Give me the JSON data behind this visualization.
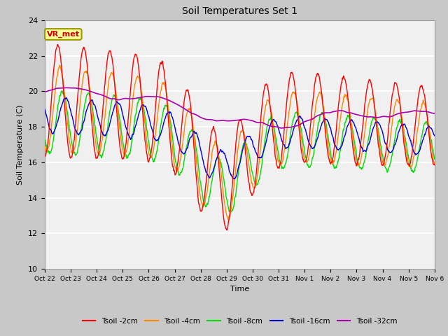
{
  "title": "Soil Temperatures Set 1",
  "xlabel": "Time",
  "ylabel": "Soil Temperature (C)",
  "ylim": [
    10,
    24
  ],
  "yticks": [
    10,
    12,
    14,
    16,
    18,
    20,
    22,
    24
  ],
  "annotation_text": "VR_met",
  "line_colors": {
    "2cm": "#ff0000",
    "4cm": "#ff8800",
    "8cm": "#00dd00",
    "16cm": "#0000dd",
    "32cm": "#aa00aa"
  },
  "legend_labels": [
    "Tsoil -2cm",
    "Tsoil -4cm",
    "Tsoil -8cm",
    "Tsoil -16cm",
    "Tsoil -32cm"
  ],
  "fig_bg_color": "#c8c8c8",
  "plot_bg_color": "#f0f0f0",
  "grid_color": "#ffffff",
  "n_points": 1440,
  "total_days": 15
}
